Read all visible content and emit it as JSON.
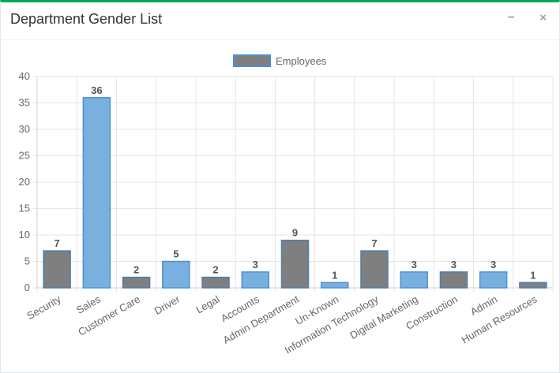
{
  "panel": {
    "title": "Department Gender List",
    "minimize_icon": "minus-icon",
    "close_icon": "close-icon",
    "minimize_glyph": "−",
    "close_glyph": "×"
  },
  "colors": {
    "accent_border": "#00a65a",
    "bar_gray_fill": "#7f7f7f",
    "bar_gray_stroke": "#4a7fb5",
    "bar_blue_fill": "#7ab0dd",
    "bar_blue_stroke": "#4a90d9"
  },
  "chart_data": {
    "type": "bar",
    "categories": [
      "Security",
      "Sales",
      "Customer Care",
      "Driver",
      "Legal",
      "Accounts",
      "Admin Department",
      "Un-Known",
      "Information Technology",
      "Digital Marketing",
      "Construction",
      "Admin",
      "Human Resources"
    ],
    "series": [
      {
        "name": "Employees",
        "values": [
          7,
          36,
          2,
          5,
          2,
          3,
          9,
          1,
          7,
          3,
          3,
          3,
          1
        ]
      }
    ],
    "bar_colors": [
      "gray",
      "blue",
      "gray",
      "blue",
      "gray",
      "blue",
      "gray",
      "blue",
      "gray",
      "blue",
      "gray",
      "blue",
      "gray"
    ],
    "ylim": [
      0,
      40
    ],
    "yticks": [
      0,
      5,
      10,
      15,
      20,
      25,
      30,
      35,
      40
    ],
    "grid": true,
    "legend_position": "top-center",
    "title": "",
    "xlabel": "",
    "ylabel": ""
  }
}
